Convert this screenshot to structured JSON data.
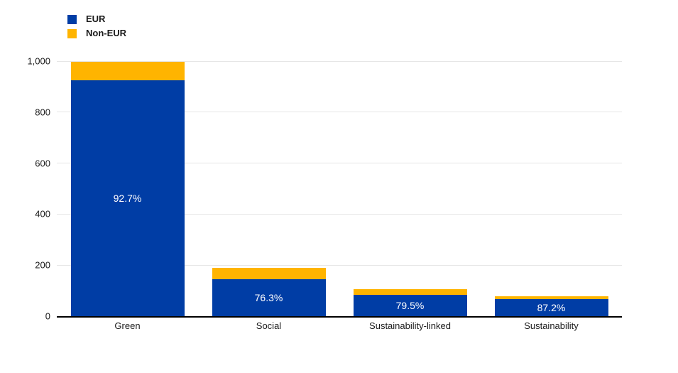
{
  "chart_data": {
    "type": "bar",
    "stacked": true,
    "orientation": "vertical",
    "title": "",
    "xlabel": "",
    "ylabel": "",
    "categories": [
      "Green",
      "Social",
      "Sustainability-linked",
      "Sustainability"
    ],
    "series": [
      {
        "name": "EUR",
        "color": "#003DA5",
        "values": [
          925,
          145,
          85,
          68
        ]
      },
      {
        "name": "Non-EUR",
        "color": "#FFB400",
        "values": [
          73,
          45,
          22,
          10
        ]
      }
    ],
    "bar_labels": [
      {
        "text": "92.7%",
        "color": "#ffffff"
      },
      {
        "text": "76.3%",
        "color": "#ffffff"
      },
      {
        "text": "79.5%",
        "color": "#ffffff"
      },
      {
        "text": "87.2%",
        "color": "#ffffff"
      }
    ],
    "ylim": [
      0,
      1000
    ],
    "yticks": [
      {
        "value": 0,
        "label": "0"
      },
      {
        "value": 200,
        "label": "200"
      },
      {
        "value": 400,
        "label": "400"
      },
      {
        "value": 600,
        "label": "600"
      },
      {
        "value": 800,
        "label": "800"
      },
      {
        "value": 1000,
        "label": "1,000"
      }
    ],
    "grid": true,
    "gridline_color": "#e6e6e6",
    "axis_line_color": "#000000",
    "legend_position": "top-left"
  }
}
